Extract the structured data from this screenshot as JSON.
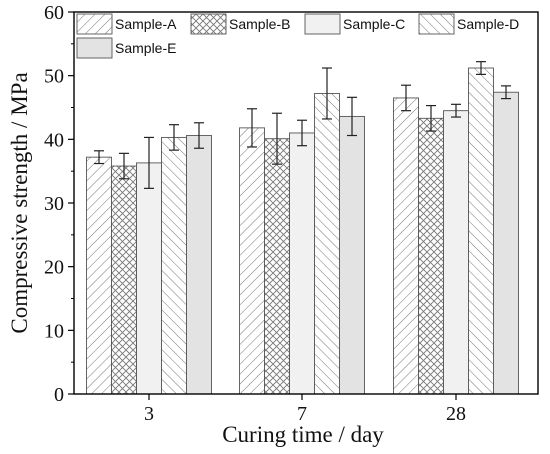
{
  "chart_data": {
    "type": "bar",
    "categories": [
      "3",
      "7",
      "28"
    ],
    "xlabel": "Curing time / day",
    "ylabel": "Compressive strength / MPa",
    "ylim": [
      0,
      60
    ],
    "yticks": [
      0,
      10,
      20,
      30,
      40,
      50,
      60
    ],
    "legend_position": "top",
    "grid": false,
    "series": [
      {
        "name": "Sample-A",
        "pattern": "diagonal-forward",
        "values": [
          37.2,
          41.8,
          46.5
        ],
        "errors": [
          1.0,
          3.0,
          2.0
        ]
      },
      {
        "name": "Sample-B",
        "pattern": "crosshatch",
        "values": [
          35.8,
          40.1,
          43.3
        ],
        "errors": [
          2.0,
          4.0,
          2.0
        ]
      },
      {
        "name": "Sample-C",
        "pattern": "plain-light",
        "values": [
          36.3,
          41.0,
          44.5
        ],
        "errors": [
          4.0,
          2.0,
          1.0
        ]
      },
      {
        "name": "Sample-D",
        "pattern": "diagonal-backward",
        "values": [
          40.3,
          47.2,
          51.2
        ],
        "errors": [
          2.0,
          4.0,
          1.0
        ]
      },
      {
        "name": "Sample-E",
        "pattern": "plain-gray",
        "values": [
          40.6,
          43.6,
          47.4
        ],
        "errors": [
          2.0,
          3.0,
          1.0
        ]
      }
    ]
  },
  "colors": {
    "bar_stroke": "#555555",
    "hatch_line": "#777777",
    "light_fill": "#f1f1f1",
    "gray_fill": "#e3e3e3",
    "axis": "#000000"
  }
}
